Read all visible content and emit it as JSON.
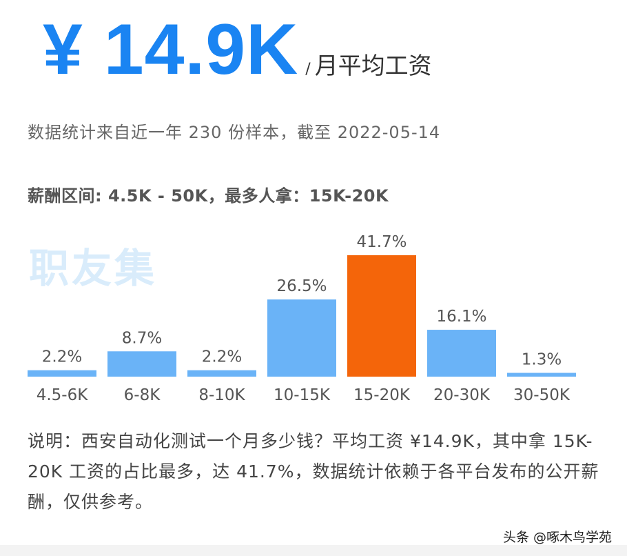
{
  "header": {
    "salary": "¥ 14.9K",
    "slash": "/",
    "unit": "月平均工资",
    "subtitle": "数据统计来自近一年 230 份样本，截至 2022-05-14",
    "range_text": "薪酬区间: 4.5K - 50K，最多人拿：15K-20K",
    "watermark": "职友集"
  },
  "chart_data": {
    "type": "bar",
    "categories": [
      "4.5-6K",
      "6-8K",
      "8-10K",
      "10-15K",
      "15-20K",
      "20-30K",
      "30-50K"
    ],
    "values": [
      2.2,
      8.7,
      2.2,
      26.5,
      41.7,
      16.1,
      1.3
    ],
    "value_labels": [
      "2.2%",
      "8.7%",
      "2.2%",
      "26.5%",
      "41.7%",
      "16.1%",
      "1.3%"
    ],
    "highlight_index": 4,
    "colors": {
      "normal": "#6ab3f7",
      "highlight": "#f4650a"
    },
    "title": "",
    "xlabel": "",
    "ylabel": "",
    "ylim": [
      0,
      41.7
    ]
  },
  "note": {
    "text": "说明：西安自动化测试一个月多少钱？平均工资 ¥14.9K，其中拿 15K-20K 工资的占比最多，达 41.7%，数据统计依赖于各平台发布的公开薪酬，仅供参考。"
  },
  "footer": {
    "source": "头条 @啄木鸟学苑"
  }
}
